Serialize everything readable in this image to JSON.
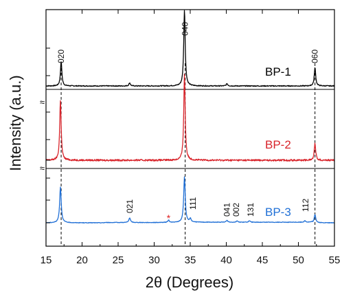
{
  "chart_data": {
    "type": "line",
    "xlabel": "2θ (Degrees)",
    "ylabel": "Intensity (a.u.)",
    "xlim": [
      15,
      55
    ],
    "x_ticks": [
      15,
      20,
      25,
      30,
      35,
      40,
      45,
      50,
      55
    ],
    "grid": false,
    "legend": "none",
    "reference_lines_x": [
      17.1,
      34.3,
      52.3
    ],
    "axis_break_symbol": "≈",
    "series": [
      {
        "name": "BP-1",
        "color": "#000000",
        "peaks": [
          {
            "x": 17.1,
            "height": 0.32
          },
          {
            "x": 26.6,
            "height": 0.04
          },
          {
            "x": 34.2,
            "height": 1.0
          },
          {
            "x": 40.1,
            "height": 0.03
          },
          {
            "x": 52.3,
            "height": 0.24
          }
        ]
      },
      {
        "name": "BP-2",
        "color": "#d8232a",
        "peaks": [
          {
            "x": 17.0,
            "height": 0.7
          },
          {
            "x": 34.2,
            "height": 1.0
          },
          {
            "x": 52.3,
            "height": 0.2
          }
        ]
      },
      {
        "name": "BP-3",
        "color": "#1f6fd6",
        "peaks": [
          {
            "x": 17.0,
            "height": 0.78
          },
          {
            "x": 26.6,
            "height": 0.1
          },
          {
            "x": 32.0,
            "height": 0.05
          },
          {
            "x": 34.2,
            "height": 1.0
          },
          {
            "x": 35.0,
            "height": 0.08
          },
          {
            "x": 40.1,
            "height": 0.04
          },
          {
            "x": 41.5,
            "height": 0.03
          },
          {
            "x": 43.2,
            "height": 0.03
          },
          {
            "x": 50.9,
            "height": 0.03
          },
          {
            "x": 52.3,
            "height": 0.18
          }
        ]
      }
    ],
    "annotations": [
      {
        "text": "020",
        "x": 17.1
      },
      {
        "text": "040",
        "x": 34.3
      },
      {
        "text": "060",
        "x": 52.3
      },
      {
        "text": "021",
        "x": 26.6
      },
      {
        "text": "111",
        "x": 35.4
      },
      {
        "text": "041",
        "x": 40.1
      },
      {
        "text": "002",
        "x": 41.4
      },
      {
        "text": "131",
        "x": 43.4
      },
      {
        "text": "112",
        "x": 51.0
      },
      {
        "text": "*",
        "x": 32.0,
        "color": "#e02020"
      }
    ]
  }
}
